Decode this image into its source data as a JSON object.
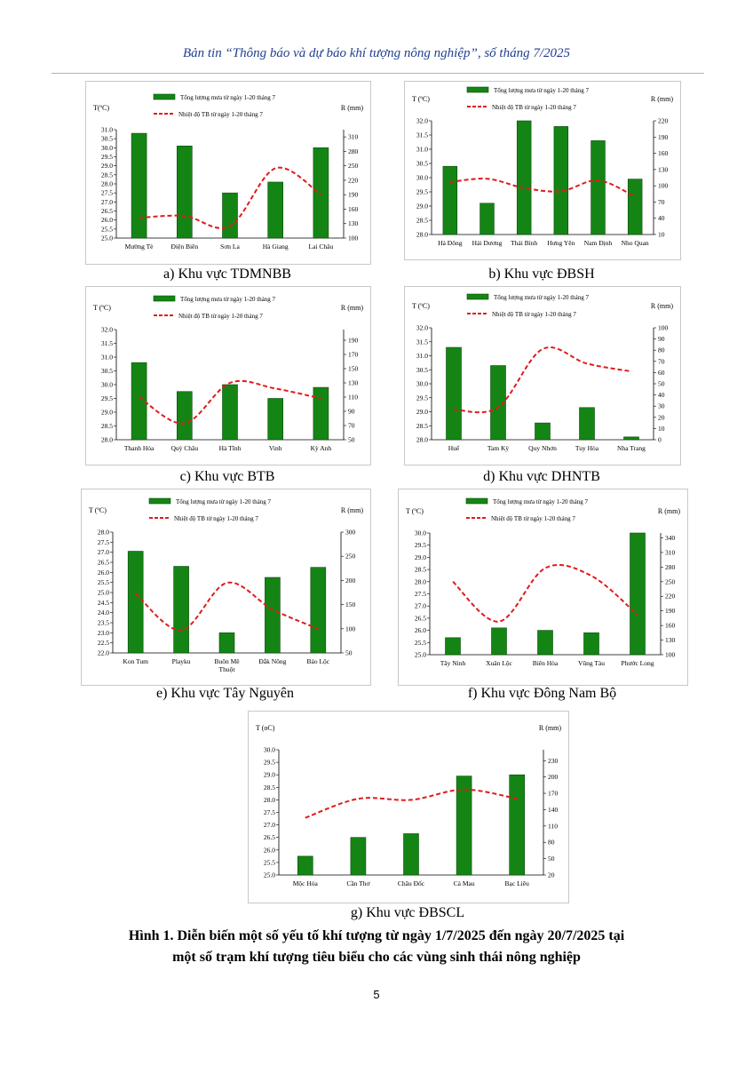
{
  "header": {
    "title": "Bản tin “Thông báo và dự báo khí tượng nông nghiệp”, số tháng 7/2025"
  },
  "figure": {
    "title_line1": "Hình 1. Diễn biến một số yếu tố khí tượng từ ngày 1/7/2025 đến ngày 20/7/2025 tại",
    "title_line2": "một số trạm khí tượng tiêu biểu cho các vùng sinh thái nông nghiệp"
  },
  "page_number": "5",
  "colors": {
    "bar": "#148514",
    "bar_stroke": "#0b4a0b",
    "line": "#e01b1b",
    "header": "#1f3f8f"
  },
  "chart_data": [
    {
      "id": "a",
      "type": "bar",
      "caption": "a)  Khu vực TDMNBB",
      "ylabel_left": "T(ºC)",
      "ylabel_right": "R (mm)",
      "legend": [
        "Tổng lượng mưa từ ngày 1-20 tháng 7",
        "Nhiệt độ TB từ ngày 1-20 tháng 7"
      ],
      "categories": [
        "Mường Tè",
        "Điện Biên",
        "Sơn La",
        "Hà Giang",
        "Lai Châu"
      ],
      "ylim_left": [
        25.0,
        31.0
      ],
      "yticks_left": [
        "25.0",
        "25.5",
        "26.0",
        "26.5",
        "27.0",
        "27.5",
        "28.0",
        "28.5",
        "29.0",
        "29.5",
        "30.0",
        "30.5",
        "31.0"
      ],
      "ylim_right": [
        100,
        325
      ],
      "yticks_right": [
        "100",
        "130",
        "160",
        "190",
        "220",
        "250",
        "280",
        "310"
      ],
      "series": [
        {
          "name": "Tổng lượng mưa từ ngày 1-20 tháng 7",
          "axis": "left",
          "kind": "bar",
          "values": [
            30.8,
            30.1,
            27.5,
            28.1,
            30.0
          ]
        },
        {
          "name": "Nhiệt độ TB từ ngày 1-20 tháng 7",
          "axis": "right",
          "kind": "line",
          "values": [
            142,
            146,
            125,
            245,
            190
          ]
        }
      ]
    },
    {
      "id": "b",
      "type": "bar",
      "caption": "b)  Khu vực ĐBSH",
      "ylabel_left": "T (ºC)",
      "ylabel_right": "R (mm)",
      "legend": [
        "Tổng lượng mưa từ ngày 1-20 tháng 7",
        "Nhiệt độ TB từ ngày 1-20 tháng 7"
      ],
      "categories": [
        "Hà Đông",
        "Hải Dương",
        "Thái Bình",
        "Hưng Yên",
        "Nam Định",
        "Nho Quan"
      ],
      "ylim_left": [
        28.0,
        32.0
      ],
      "yticks_left": [
        "28.0",
        "28.5",
        "29.0",
        "29.5",
        "30.0",
        "30.5",
        "31.0",
        "31.5",
        "32.0"
      ],
      "ylim_right": [
        10,
        220
      ],
      "yticks_right": [
        "10",
        "40",
        "70",
        "100",
        "130",
        "160",
        "190",
        "220"
      ],
      "series": [
        {
          "name": "Tổng lượng mưa từ ngày 1-20 tháng 7",
          "axis": "left",
          "kind": "bar",
          "values": [
            30.4,
            29.1,
            32.0,
            31.8,
            31.3,
            29.95
          ]
        },
        {
          "name": "Nhiệt độ TB từ ngày 1-20 tháng 7",
          "axis": "right",
          "kind": "line",
          "values": [
            107,
            113,
            96,
            90,
            110,
            80
          ]
        }
      ]
    },
    {
      "id": "c",
      "type": "bar",
      "caption": "c)  Khu vực BTB",
      "ylabel_left": "T (ºC)",
      "ylabel_right": "R (mm)",
      "legend": [
        "Tổng lượng mưa từ ngày 1-20 tháng 7",
        "Nhiệt độ TB từ ngày 1-20 tháng 7"
      ],
      "categories": [
        "Thanh Hóa",
        "Quỳ Châu",
        "Hà Tĩnh",
        "Vinh",
        "Kỳ Anh"
      ],
      "ylim_left": [
        28.0,
        32.0
      ],
      "yticks_left": [
        "28.0",
        "28.5",
        "29.0",
        "29.5",
        "30.0",
        "30.5",
        "31.0",
        "31.5",
        "32.0"
      ],
      "ylim_right": [
        50,
        205
      ],
      "yticks_right": [
        "50",
        "70",
        "90",
        "110",
        "130",
        "150",
        "170",
        "190"
      ],
      "series": [
        {
          "name": "Tổng lượng mưa từ ngày 1-20 tháng 7",
          "axis": "left",
          "kind": "bar",
          "values": [
            30.8,
            29.75,
            30.0,
            29.5,
            29.9
          ]
        },
        {
          "name": "Nhiệt độ TB từ ngày 1-20 tháng 7",
          "axis": "right",
          "kind": "line",
          "values": [
            110,
            73,
            130,
            122,
            108
          ]
        }
      ]
    },
    {
      "id": "d",
      "type": "bar",
      "caption": "d)  Khu vực DHNTB",
      "ylabel_left": "T (ºC)",
      "ylabel_right": "R (mm)",
      "legend": [
        "Tổng lượng mưa từ ngày 1-20 tháng 7",
        "Nhiệt độ TB từ ngày 1-20 tháng 7"
      ],
      "categories": [
        "Huế",
        "Tam Kỳ",
        "Quy Nhơn",
        "Tuy Hòa",
        "Nha Trang"
      ],
      "ylim_left": [
        28.0,
        32.0
      ],
      "yticks_left": [
        "28.0",
        "28.5",
        "29.0",
        "29.5",
        "30.0",
        "30.5",
        "31.0",
        "31.5",
        "32.0"
      ],
      "ylim_right": [
        0,
        100
      ],
      "yticks_right": [
        "0",
        "10",
        "20",
        "30",
        "40",
        "50",
        "60",
        "70",
        "80",
        "90",
        "100"
      ],
      "series": [
        {
          "name": "Tổng lượng mưa từ ngày 1-20 tháng 7",
          "axis": "left",
          "kind": "bar",
          "values": [
            31.3,
            30.65,
            28.6,
            29.15,
            28.1
          ]
        },
        {
          "name": "Nhiệt độ TB từ ngày 1-20 tháng 7",
          "axis": "right",
          "kind": "line",
          "values": [
            27,
            29,
            81,
            68,
            61
          ]
        }
      ]
    },
    {
      "id": "e",
      "type": "bar",
      "caption": "e)  Khu vực Tây Nguyên",
      "ylabel_left": "T (ºC)",
      "ylabel_right": "R (mm)",
      "legend": [
        "Tổng lượng mưa từ ngày 1-20 tháng 7",
        "Nhiệt độ TB từ ngày 1-20 tháng 7"
      ],
      "categories": [
        "Kon Tum",
        "Playku",
        "Buôn Mê Thuột",
        "Đắk Nông",
        "Bảo Lộc"
      ],
      "ylim_left": [
        22.0,
        28.0
      ],
      "yticks_left": [
        "22.0",
        "22.5",
        "23.0",
        "23.5",
        "24.0",
        "24.5",
        "25.0",
        "25.5",
        "26.0",
        "26.5",
        "27.0",
        "27.5",
        "28.0"
      ],
      "ylim_right": [
        50,
        300
      ],
      "yticks_right": [
        "50",
        "100",
        "150",
        "200",
        "250",
        "300"
      ],
      "series": [
        {
          "name": "Tổng lượng mưa từ ngày 1-20 tháng 7",
          "axis": "left",
          "kind": "bar",
          "values": [
            27.05,
            26.3,
            23.0,
            25.75,
            26.25
          ]
        },
        {
          "name": "Nhiệt độ TB từ ngày 1-20 tháng 7",
          "axis": "right",
          "kind": "line",
          "values": [
            173,
            97,
            195,
            140,
            100
          ]
        }
      ]
    },
    {
      "id": "f",
      "type": "bar",
      "caption": "f)  Khu vực Đông Nam Bộ",
      "ylabel_left": "T (ºC)",
      "ylabel_right": "R (mm)",
      "legend": [
        "Tổng lượng mưa từ ngày 1-20 tháng 7",
        "Nhiệt độ TB từ ngày 1-20 tháng 7"
      ],
      "categories": [
        "Tây Ninh",
        "Xuân Lộc",
        "Biên Hòa",
        "Vũng Tàu",
        "Phước Long"
      ],
      "ylim_left": [
        25.0,
        30.0
      ],
      "yticks_left": [
        "25.0",
        "25.5",
        "26.0",
        "26.5",
        "27.0",
        "27.5",
        "28.0",
        "28.5",
        "29.0",
        "29.5",
        "30.0"
      ],
      "ylim_right": [
        100,
        350
      ],
      "yticks_right": [
        "100",
        "130",
        "160",
        "190",
        "220",
        "250",
        "280",
        "310",
        "340"
      ],
      "series": [
        {
          "name": "Tổng lượng mưa từ ngày 1-20 tháng 7",
          "axis": "left",
          "kind": "bar",
          "values": [
            25.7,
            26.1,
            26.0,
            25.9,
            30.0
          ]
        },
        {
          "name": "Nhiệt độ TB từ ngày 1-20 tháng 7",
          "axis": "right",
          "kind": "line",
          "values": [
            250,
            168,
            278,
            262,
            182
          ]
        }
      ]
    },
    {
      "id": "g",
      "type": "bar",
      "caption": "g)  Khu vực ĐBSCL",
      "ylabel_left": "T (oC)",
      "ylabel_right": "R (mm)",
      "legend": [],
      "categories": [
        "Mộc Hóa",
        "Cần Thơ",
        "Châu Đốc",
        "Cà Mau",
        "Bạc Liêu"
      ],
      "ylim_left": [
        25.0,
        30.0
      ],
      "yticks_left": [
        "25.0",
        "25.5",
        "26.0",
        "26.5",
        "27.0",
        "27.5",
        "28.0",
        "28.5",
        "29.0",
        "29.5",
        "30.0"
      ],
      "ylim_right": [
        20,
        250
      ],
      "yticks_right": [
        "20",
        "50",
        "80",
        "110",
        "140",
        "170",
        "200",
        "230"
      ],
      "series": [
        {
          "name": "",
          "axis": "left",
          "kind": "bar",
          "values": [
            25.75,
            26.5,
            26.65,
            28.95,
            29.0
          ]
        },
        {
          "name": "",
          "axis": "right",
          "kind": "line",
          "values": [
            125,
            160,
            158,
            177,
            160
          ]
        }
      ]
    }
  ]
}
